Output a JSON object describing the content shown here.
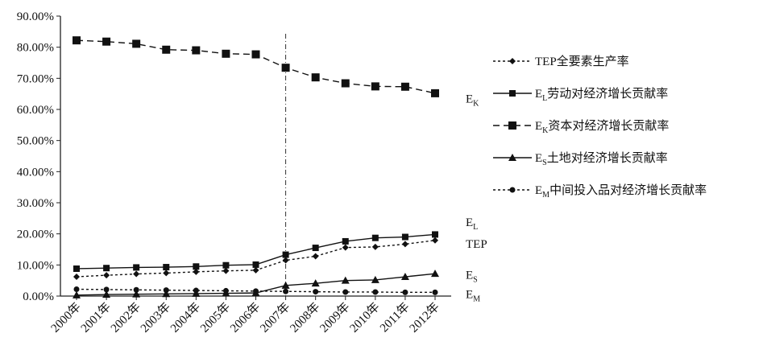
{
  "chart_data": {
    "type": "line",
    "categories": [
      "2000年",
      "2001年",
      "2002年",
      "2003年",
      "2004年",
      "2005年",
      "2006年",
      "2007年",
      "2008年",
      "2009年",
      "2010年",
      "2011年",
      "2012年"
    ],
    "ylim": [
      0,
      90
    ],
    "yticks": [
      "0.00%",
      "10.00%",
      "20.00%",
      "30.00%",
      "40.00%",
      "50.00%",
      "60.00%",
      "70.00%",
      "80.00%",
      "90.00%"
    ],
    "vline_at": "2007年",
    "grid": false,
    "legend_position": "right",
    "series": [
      {
        "name": "TEP全要素生产率",
        "marker": "diamond",
        "dash": "3,3",
        "values": [
          6.2,
          6.7,
          7.1,
          7.4,
          7.8,
          8.1,
          8.3,
          11.5,
          12.8,
          15.6,
          15.8,
          16.7,
          17.9
        ]
      },
      {
        "name": "EL劳动对经济增长贡献率",
        "marker": "square-small",
        "dash": "",
        "values": [
          8.8,
          9.0,
          9.2,
          9.3,
          9.5,
          9.9,
          10.1,
          13.3,
          15.5,
          17.6,
          18.7,
          19.0,
          19.8
        ]
      },
      {
        "name": "EK资本对经济增长贡献率",
        "marker": "square",
        "dash": "8,5",
        "values": [
          82.2,
          81.8,
          81.1,
          79.2,
          79.0,
          77.9,
          77.7,
          73.4,
          70.3,
          68.4,
          67.4,
          67.3,
          65.2
        ]
      },
      {
        "name": "ES土地对经济增长贡献率",
        "marker": "triangle",
        "dash": "",
        "values": [
          0.3,
          0.5,
          0.6,
          0.7,
          0.8,
          0.9,
          1.0,
          3.4,
          4.1,
          5.0,
          5.2,
          6.2,
          7.2
        ]
      },
      {
        "name": "EM中间投入品对经济增长贡献率",
        "marker": "circle",
        "dash": "3,3",
        "values": [
          2.2,
          2.1,
          2.0,
          1.9,
          1.8,
          1.7,
          1.6,
          1.5,
          1.4,
          1.3,
          1.3,
          1.2,
          1.2
        ]
      }
    ],
    "end_labels": [
      {
        "main": "E",
        "sub": "K",
        "value": 63.5
      },
      {
        "main": "E",
        "sub": "L",
        "value": 23.8
      },
      {
        "main": "TEP",
        "sub": "",
        "value": 16.8
      },
      {
        "main": "E",
        "sub": "S",
        "value": 6.9
      },
      {
        "main": "E",
        "sub": "M",
        "value": 0.7
      }
    ],
    "legend": [
      {
        "main": "TEP全要素生产率",
        "sub": "",
        "rest": ""
      },
      {
        "main": "E",
        "sub": "L",
        "rest": "劳动对经济增长贡献率"
      },
      {
        "main": "E",
        "sub": "K",
        "rest": "资本对经济增长贡献率"
      },
      {
        "main": "E",
        "sub": "S",
        "rest": "土地对经济增长贡献率"
      },
      {
        "main": "E",
        "sub": "M",
        "rest": "中间投入品对经济增长贡献率"
      }
    ]
  }
}
